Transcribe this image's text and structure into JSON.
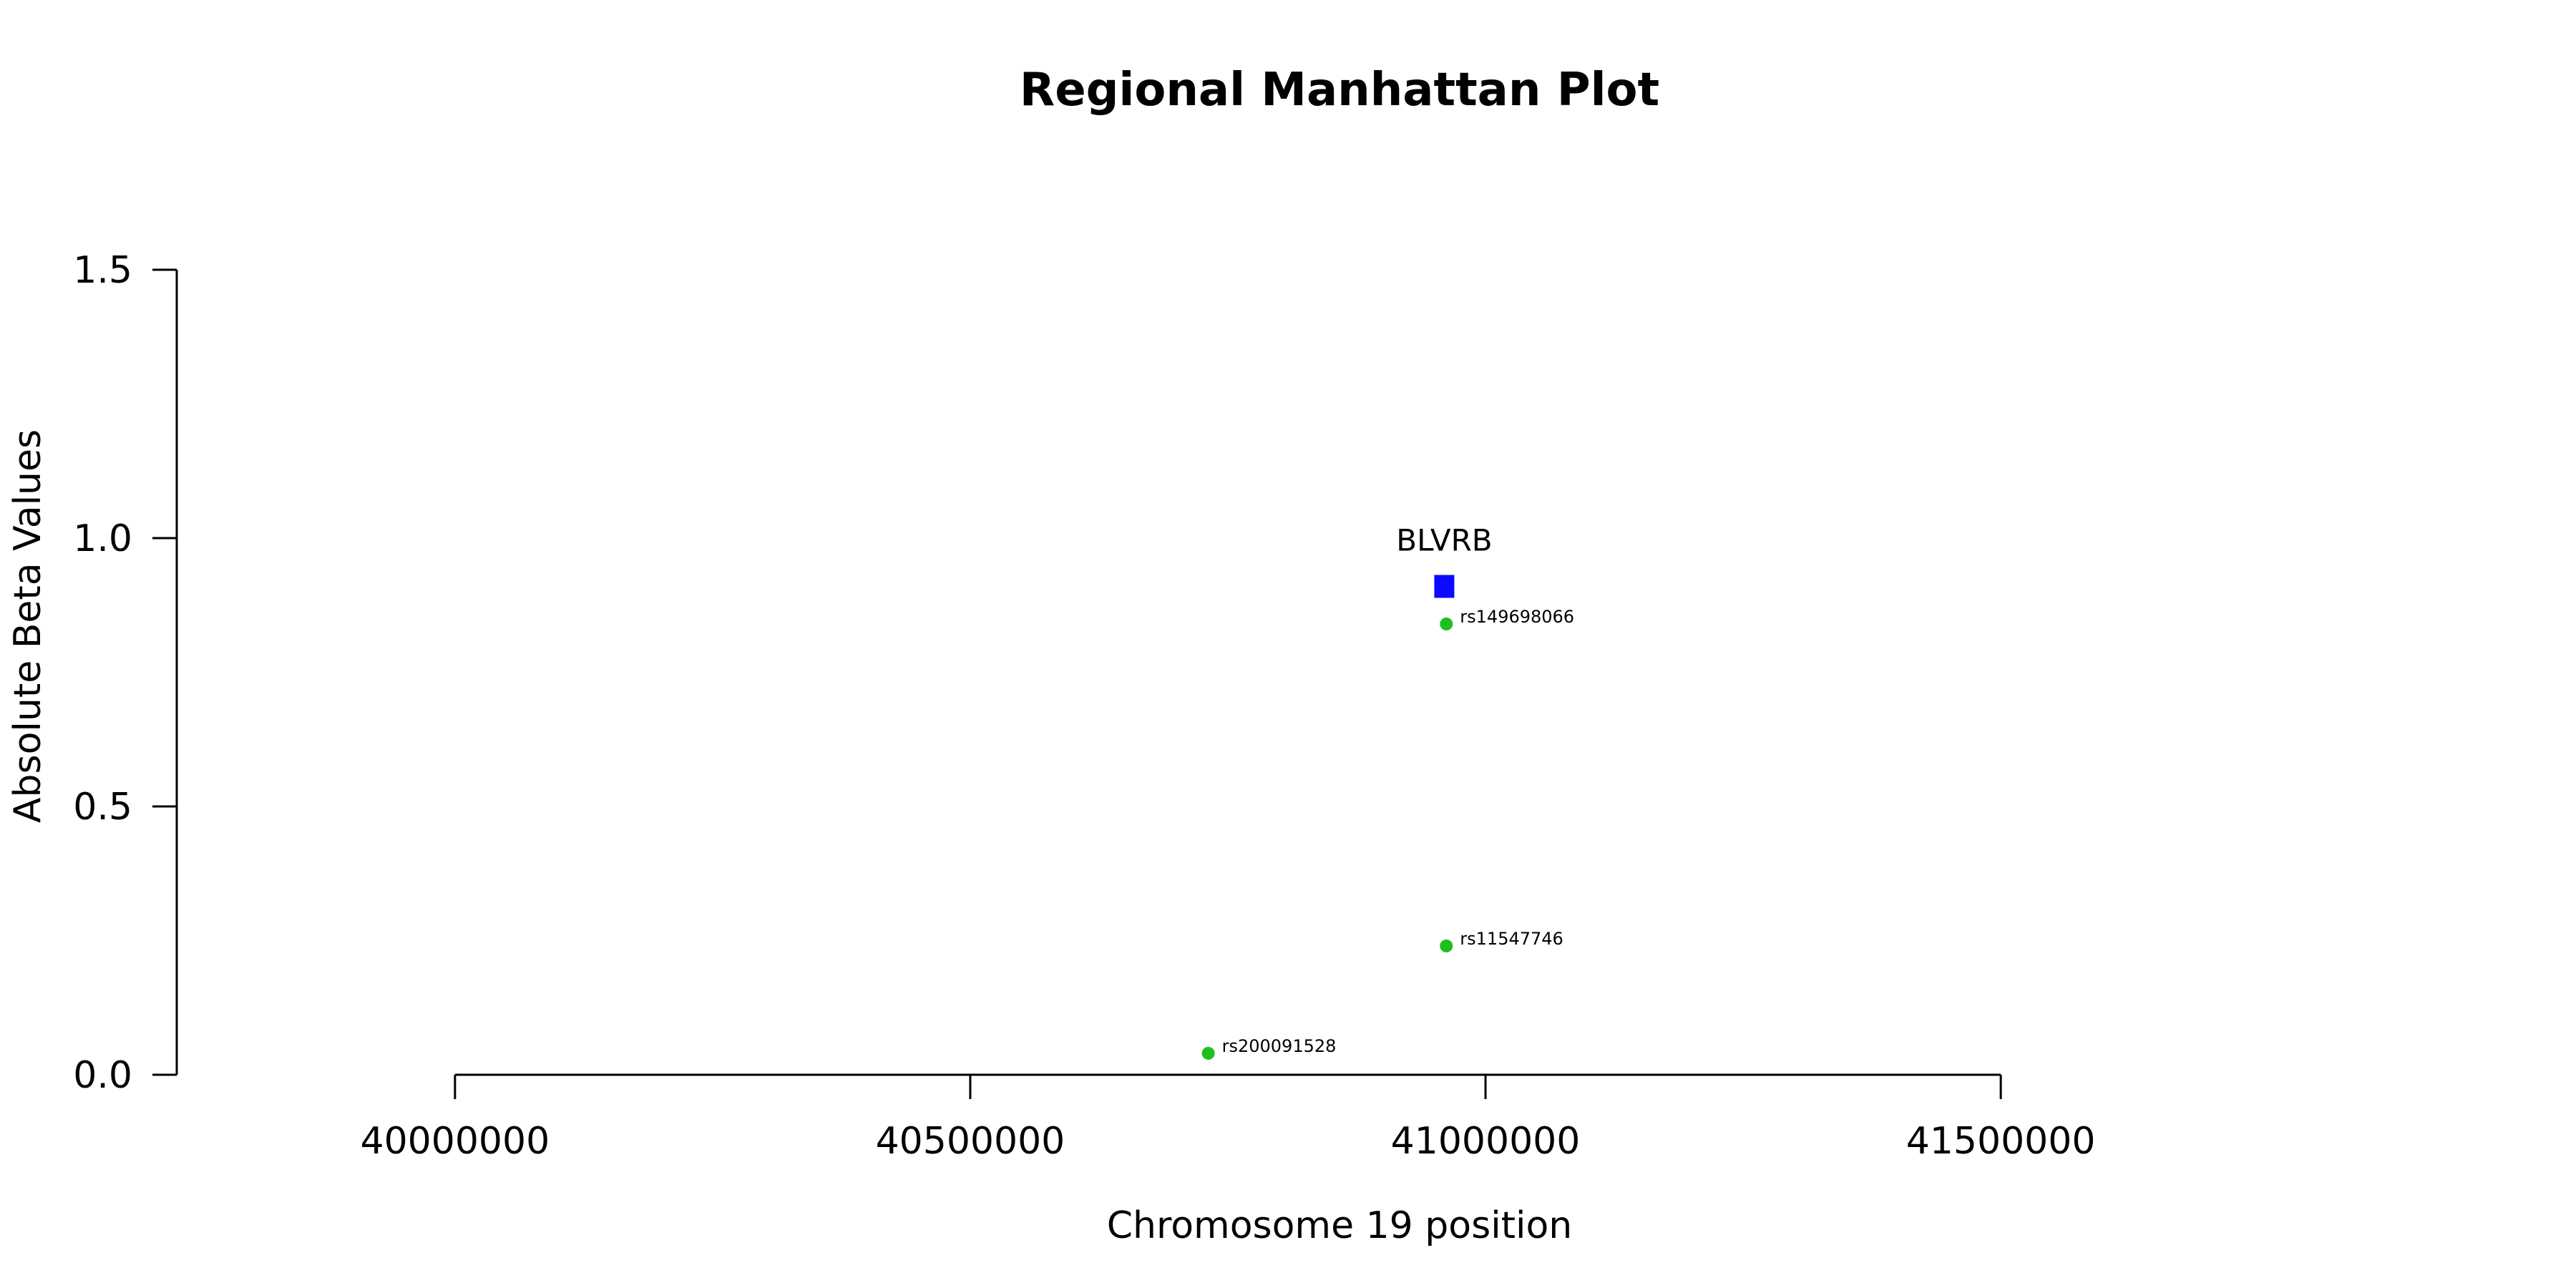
{
  "chart_data": {
    "type": "scatter",
    "title": "Regional Manhattan Plot",
    "xlabel": "Chromosome 19 position",
    "ylabel": "Absolute Beta Values",
    "xlim": [
      39730000,
      42020000
    ],
    "ylim": [
      0,
      1.5
    ],
    "x_ticks": [
      40000000,
      40500000,
      41000000,
      41500000
    ],
    "x_tick_labels": [
      "40000000",
      "40500000",
      "41000000",
      "41500000"
    ],
    "y_ticks": [
      0,
      0.5,
      1.0,
      1.5
    ],
    "y_tick_labels": [
      "0.0",
      "0.5",
      "1.0",
      "1.5"
    ],
    "grid": false,
    "series": [
      {
        "marker": "circle",
        "color": "#1fbf1f",
        "points": [
          {
            "label": "rs149698066",
            "x": 40962000,
            "y": 0.84
          },
          {
            "label": "rs11547746",
            "x": 40962000,
            "y": 0.24
          },
          {
            "label": "rs200091528",
            "x": 40731000,
            "y": 0.04
          }
        ]
      },
      {
        "marker": "square",
        "color": "#0a0aff",
        "points": [
          {
            "label": "BLVRB",
            "x": 40960000,
            "y": 0.91
          }
        ]
      }
    ]
  }
}
